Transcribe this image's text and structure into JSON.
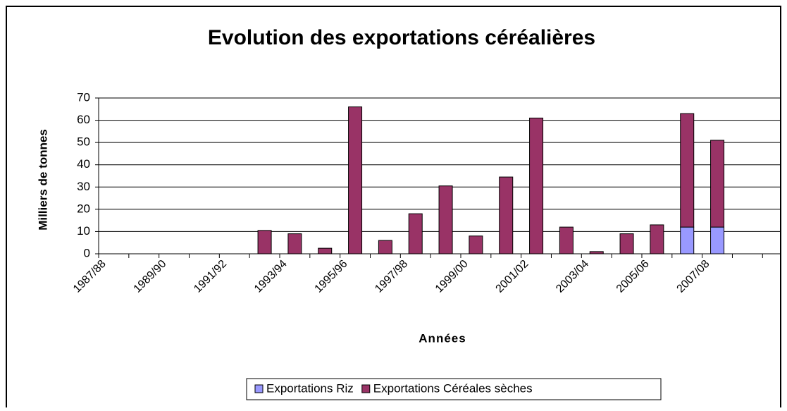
{
  "chart_data": {
    "type": "stacked-bar",
    "title": "Evolution des exportations céréalières",
    "x_label": "Années",
    "y_label": "Milliers de tonnes",
    "categories": [
      "1987/88",
      null,
      "1989/90",
      null,
      "1991/92",
      null,
      "1993/94",
      null,
      "1995/96",
      null,
      "1997/98",
      null,
      "1999/00",
      null,
      "2001/02",
      null,
      "2003/04",
      null,
      "2005/06",
      null,
      "2007/08",
      null,
      null
    ],
    "series": [
      {
        "name": "Exportations Riz",
        "color": "#9999ff",
        "values": [
          0,
          0,
          0,
          0,
          0,
          0,
          0,
          0,
          0,
          0,
          0,
          0,
          0,
          0,
          0,
          0,
          0,
          0,
          0,
          12,
          12,
          0,
          0
        ]
      },
      {
        "name": "Exportations Céréales sèches",
        "color": "#993366",
        "values": [
          0,
          0,
          0,
          0,
          0,
          10.5,
          9,
          2.5,
          66,
          6,
          18,
          30.5,
          8,
          34.5,
          61,
          12,
          1,
          9,
          13,
          51,
          39,
          0,
          0
        ]
      }
    ],
    "ylim": [
      0,
      70
    ],
    "yticks": [
      0,
      10,
      20,
      30,
      40,
      50,
      60,
      70
    ],
    "grid": true,
    "legend": "bottom"
  }
}
